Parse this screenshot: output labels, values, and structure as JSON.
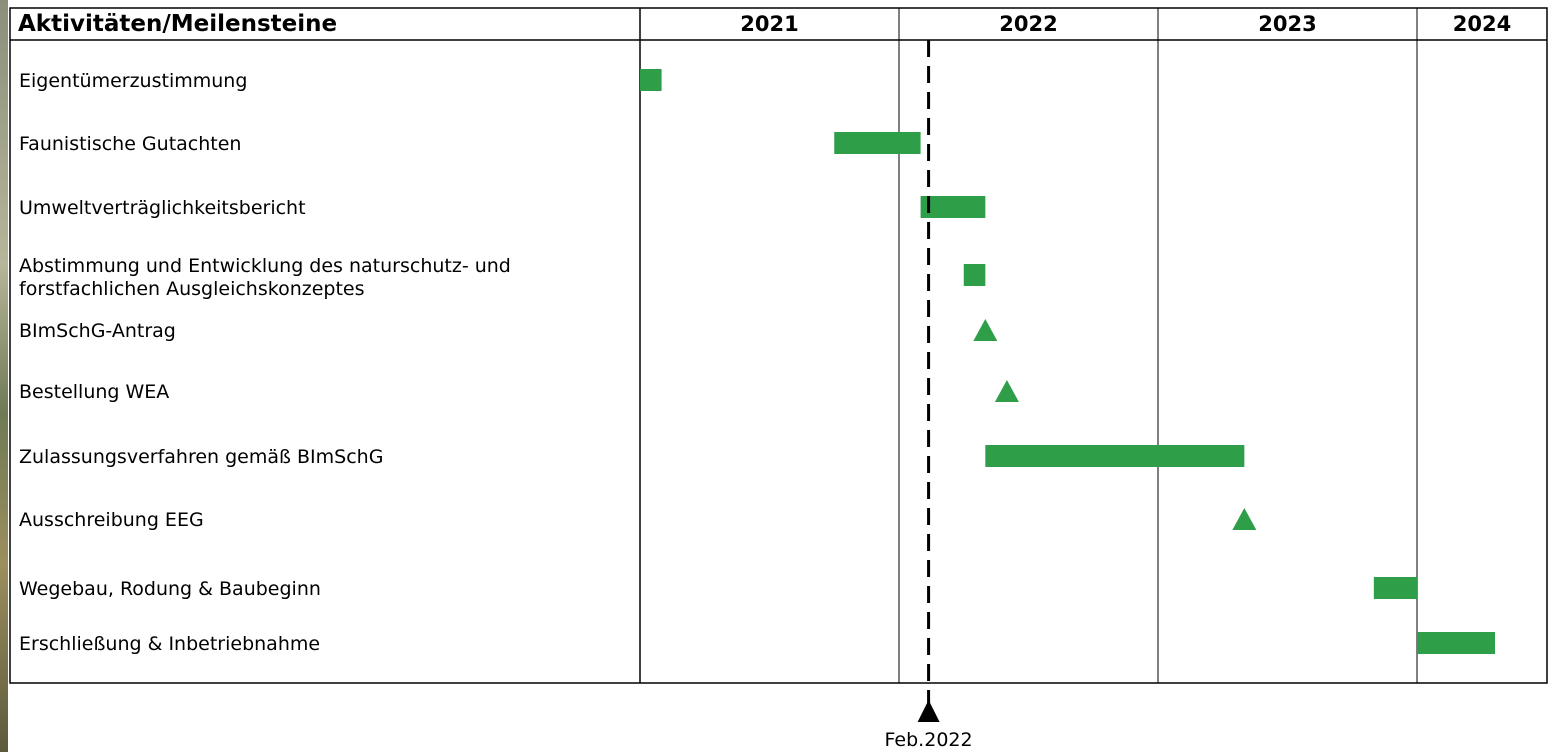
{
  "chart_data": {
    "type": "gantt",
    "header": "Aktivitäten/Meilensteine",
    "years": [
      "2021",
      "2022",
      "2023",
      "2024"
    ],
    "time_axis": {
      "start": "2021-01",
      "end": "2024-05"
    },
    "accent_color": "#2e9e48",
    "today_marker": {
      "label": "Feb.2022",
      "date": "2022-02"
    },
    "tasks": [
      {
        "label": "Eigentümerzustimmung",
        "kind": "bar",
        "start": "2021-01",
        "end": "2021-02"
      },
      {
        "label": "Faunistische Gutachten",
        "kind": "bar",
        "start": "2021-10",
        "end": "2022-02"
      },
      {
        "label": "Umweltverträglichkeitsbericht",
        "kind": "bar",
        "start": "2022-02",
        "end": "2022-05"
      },
      {
        "label": "Abstimmung und Entwicklung des naturschutz- und\nforstfachlichen Ausgleichskonzeptes",
        "kind": "bar",
        "start": "2022-04",
        "end": "2022-05"
      },
      {
        "label": "BImSchG-Antrag",
        "kind": "milestone",
        "date": "2022-05"
      },
      {
        "label": "Bestellung WEA",
        "kind": "milestone",
        "date": "2022-06"
      },
      {
        "label": "Zulassungsverfahren gemäß BImSchG",
        "kind": "bar",
        "start": "2022-05",
        "end": "2023-05"
      },
      {
        "label": "Ausschreibung EEG",
        "kind": "milestone",
        "date": "2023-05"
      },
      {
        "label": "Wegebau, Rodung & Baubeginn",
        "kind": "bar",
        "start": "2023-11",
        "end": "2024-01"
      },
      {
        "label": "Erschließung & Inbetriebnahme",
        "kind": "bar",
        "start": "2024-01",
        "end": "2024-04"
      }
    ]
  }
}
